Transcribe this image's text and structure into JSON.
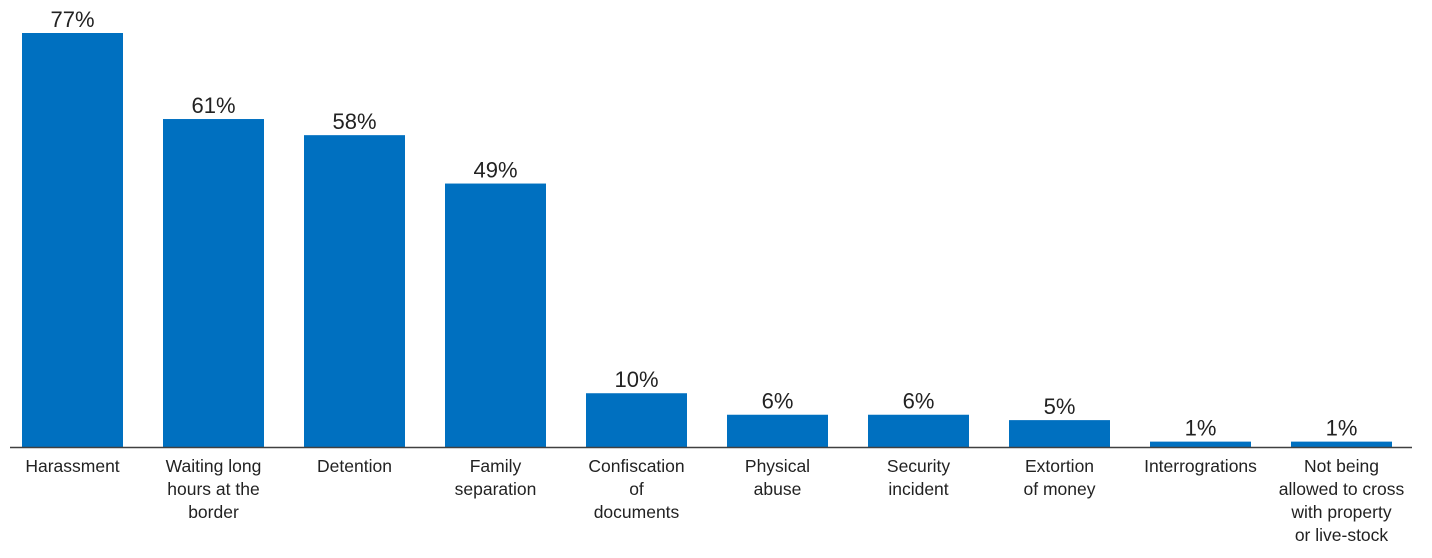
{
  "chart_data": {
    "type": "bar",
    "title": "",
    "xlabel": "",
    "ylabel": "",
    "ylim": [
      0,
      77
    ],
    "grid": false,
    "legend": "none",
    "unit": "%",
    "bar_color": "#0070c0",
    "axis_color": "#404040",
    "categories": [
      "Harassment",
      "Waiting long hours at the border",
      "Detention",
      "Family separation",
      "Confiscation of documents",
      "Physical abuse",
      "Security incident",
      "Extortion of money",
      "Interrograti­ons",
      "Not being allowed to cross with property or live-stock"
    ],
    "category_lines": [
      [
        "Harassment"
      ],
      [
        "Waiting long",
        "hours at the",
        "border"
      ],
      [
        "Detention"
      ],
      [
        "Family",
        "separation"
      ],
      [
        "Confiscation",
        "of",
        "documents"
      ],
      [
        "Physical",
        "abuse"
      ],
      [
        "Security",
        "incident"
      ],
      [
        "Extortion",
        "of money"
      ],
      [
        "Interrogrations"
      ],
      [
        "Not being",
        "allowed to cross",
        "with property",
        "or live-stock"
      ]
    ],
    "values": [
      77,
      61,
      58,
      49,
      10,
      6,
      6,
      5,
      1,
      1
    ],
    "value_labels": [
      "77%",
      "61%",
      "58%",
      "49%",
      "10%",
      "6%",
      "6%",
      "5%",
      "1%",
      "1%"
    ]
  }
}
